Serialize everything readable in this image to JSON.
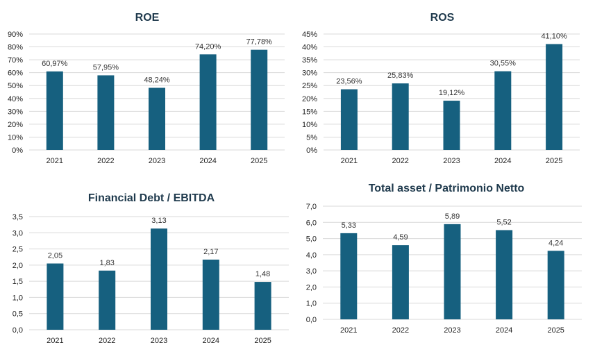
{
  "colors": {
    "bar": "#16607F",
    "grid": "#d9d9d9",
    "title": "#1f3a4d"
  },
  "chart_data": [
    {
      "type": "bar",
      "title": "ROE",
      "categories": [
        "2021",
        "2022",
        "2023",
        "2024",
        "2025"
      ],
      "values": [
        60.97,
        57.95,
        48.24,
        74.2,
        77.78
      ],
      "value_labels": [
        "60,97%",
        "57,95%",
        "48,24%",
        "74,20%",
        "77,78%"
      ],
      "ylim": [
        0,
        90
      ],
      "yticks": [
        0,
        10,
        20,
        30,
        40,
        50,
        60,
        70,
        80,
        90
      ],
      "ytick_labels": [
        "0%",
        "10%",
        "20%",
        "30%",
        "40%",
        "50%",
        "60%",
        "70%",
        "80%",
        "90%"
      ],
      "grid": true,
      "legend": "none"
    },
    {
      "type": "bar",
      "title": "ROS",
      "categories": [
        "2021",
        "2022",
        "2023",
        "2024",
        "2025"
      ],
      "values": [
        23.56,
        25.83,
        19.12,
        30.55,
        41.1
      ],
      "value_labels": [
        "23,56%",
        "25,83%",
        "19,12%",
        "30,55%",
        "41,10%"
      ],
      "ylim": [
        0,
        45
      ],
      "yticks": [
        0,
        5,
        10,
        15,
        20,
        25,
        30,
        35,
        40,
        45
      ],
      "ytick_labels": [
        "0%",
        "5%",
        "10%",
        "15%",
        "20%",
        "25%",
        "30%",
        "35%",
        "40%",
        "45%"
      ],
      "grid": true,
      "legend": "none"
    },
    {
      "type": "bar",
      "title": "Financial Debt / EBITDA",
      "categories": [
        "2021",
        "2022",
        "2023",
        "2024",
        "2025"
      ],
      "values": [
        2.05,
        1.83,
        3.13,
        2.17,
        1.48
      ],
      "value_labels": [
        "2,05",
        "1,83",
        "3,13",
        "2,17",
        "1,48"
      ],
      "ylim": [
        0,
        3.5
      ],
      "yticks": [
        0,
        0.5,
        1.0,
        1.5,
        2.0,
        2.5,
        3.0,
        3.5
      ],
      "ytick_labels": [
        "0,0",
        "0,5",
        "1,0",
        "1,5",
        "2,0",
        "2,5",
        "3,0",
        "3,5"
      ],
      "grid": true,
      "legend": "none"
    },
    {
      "type": "bar",
      "title": "Total asset /  Patrimonio Netto",
      "categories": [
        "2021",
        "2022",
        "2023",
        "2024",
        "2025"
      ],
      "values": [
        5.33,
        4.59,
        5.89,
        5.52,
        4.24
      ],
      "value_labels": [
        "5,33",
        "4,59",
        "5,89",
        "5,52",
        "4,24"
      ],
      "ylim": [
        0,
        7
      ],
      "yticks": [
        0,
        1,
        2,
        3,
        4,
        5,
        6,
        7
      ],
      "ytick_labels": [
        "0,0",
        "1,0",
        "2,0",
        "3,0",
        "4,0",
        "5,0",
        "6,0",
        "7,0"
      ],
      "grid": true,
      "legend": "none"
    }
  ]
}
